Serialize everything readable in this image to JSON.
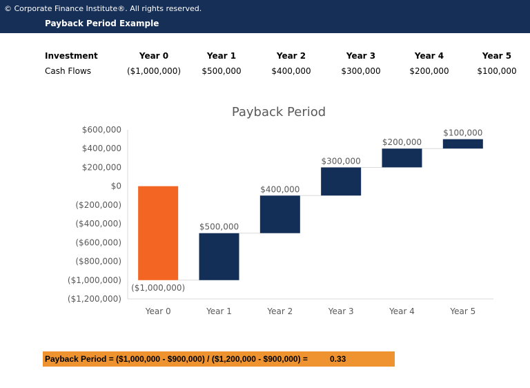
{
  "header": {
    "copyright": "© Corporate Finance Institute®. All rights reserved.",
    "title": "Payback Period Example"
  },
  "table": {
    "headers": [
      "Investment",
      "Year 0",
      "Year 1",
      "Year 2",
      "Year 3",
      "Year 4",
      "Year 5"
    ],
    "row": [
      "Cash Flows",
      "($1,000,000)",
      "$500,000",
      "$400,000",
      "$300,000",
      "$200,000",
      "$100,000"
    ]
  },
  "chart_data": {
    "type": "waterfall",
    "title": "Payback Period",
    "categories": [
      "Year 0",
      "Year 1",
      "Year 2",
      "Year 3",
      "Year 4",
      "Year 5"
    ],
    "values": [
      -1000000,
      500000,
      400000,
      300000,
      200000,
      100000
    ],
    "data_labels": [
      "($1,000,000)",
      "$500,000",
      "$400,000",
      "$300,000",
      "$200,000",
      "$100,000"
    ],
    "ylim": [
      -1200000,
      600000
    ],
    "yticks": [
      "$600,000",
      "$400,000",
      "$200,000",
      "$0",
      "($200,000)",
      "($400,000)",
      "($600,000)",
      "($800,000)",
      "($1,000,000)",
      "($1,200,000)"
    ],
    "colors": {
      "initial": "#f26522",
      "increase": "#132f57",
      "connector": "#d9d9d9"
    },
    "grid": false
  },
  "formula": {
    "text": "Payback Period = ($1,000,000 - $900,000) / ($1,200,000 - $900,000) =",
    "result": "0.33"
  }
}
